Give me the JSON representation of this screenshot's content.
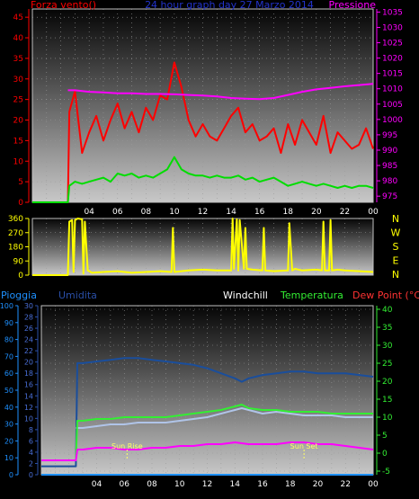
{
  "chart_data": [
    {
      "type": "line",
      "header": {
        "left": "Forza vento()",
        "center": "24 hour graph day   27 Marzo 2014",
        "right": "Pressione"
      },
      "x_ticks": [
        "04",
        "06",
        "08",
        "10",
        "12",
        "14",
        "16",
        "18",
        "20",
        "22",
        "00"
      ],
      "y_left": {
        "ticks": [
          0,
          5,
          10,
          15,
          20,
          25,
          30,
          35,
          40,
          45
        ],
        "ylim": [
          0,
          47
        ]
      },
      "y_right": {
        "ticks": [
          975,
          980,
          985,
          990,
          995,
          1000,
          1005,
          1010,
          1015,
          1020,
          1025,
          1030,
          1035
        ],
        "ylim": [
          973,
          1036
        ]
      },
      "x_hours": [
        0,
        24
      ],
      "series": [
        {
          "name": "Forza vento()",
          "color": "#ff0000",
          "x": [
            0,
            2.5,
            2.6,
            3,
            3.5,
            4,
            4.5,
            5,
            5.5,
            6,
            6.5,
            7,
            7.5,
            8,
            8.5,
            9,
            9.5,
            10,
            10.5,
            11,
            11.5,
            12,
            12.5,
            13,
            13.5,
            14,
            14.5,
            15,
            15.5,
            16,
            16.5,
            17,
            17.5,
            18,
            18.5,
            19,
            19.5,
            20,
            20.5,
            21,
            21.5,
            22,
            22.5,
            23,
            23.5,
            24
          ],
          "y": [
            0,
            0,
            22,
            27,
            12,
            17,
            21,
            15,
            20,
            24,
            18,
            22,
            17,
            23,
            20,
            26,
            25,
            34,
            28,
            20,
            16,
            19,
            16,
            15,
            18,
            21,
            23,
            17,
            19,
            15,
            16,
            18,
            12,
            19,
            14,
            20,
            17,
            14,
            21,
            12,
            17,
            15,
            13,
            14,
            18,
            13
          ]
        },
        {
          "name": "Forza vento()",
          "color": "#00dd00",
          "x": [
            0,
            2.5,
            2.6,
            3,
            3.5,
            4,
            4.5,
            5,
            5.5,
            6,
            6.5,
            7,
            7.5,
            8,
            8.5,
            9,
            9.5,
            10,
            10.5,
            11,
            11.5,
            12,
            12.5,
            13,
            13.5,
            14,
            14.5,
            15,
            15.5,
            16,
            16.5,
            17,
            17.5,
            18,
            18.5,
            19,
            19.5,
            20,
            20.5,
            21,
            21.5,
            22,
            22.5,
            23,
            23.5,
            24
          ],
          "y": [
            0,
            0,
            4,
            5,
            4.5,
            5,
            5.5,
            6,
            5,
            7,
            6.5,
            7,
            6,
            6.5,
            6,
            7,
            8,
            11,
            8,
            7,
            6.5,
            6.5,
            6,
            6.5,
            6,
            6,
            6.5,
            5.5,
            6,
            5,
            5.5,
            6,
            5,
            4,
            4.5,
            5,
            4.5,
            4,
            4.5,
            4,
            3.5,
            4,
            3.5,
            4,
            4,
            3.5
          ]
        },
        {
          "name": "Pressione",
          "axis": "right",
          "color": "#ff00ff",
          "x": [
            2.5,
            3,
            4,
            5,
            6,
            7,
            8,
            9,
            10,
            11,
            12,
            13,
            14,
            15,
            16,
            17,
            18,
            19,
            20,
            21,
            22,
            23,
            24
          ],
          "y": [
            1009.5,
            1009.5,
            1009,
            1008.8,
            1008.5,
            1008.5,
            1008.3,
            1008.3,
            1008.2,
            1008,
            1007.8,
            1007.5,
            1007,
            1006.8,
            1006.6,
            1007,
            1008,
            1009,
            1009.8,
            1010.3,
            1010.8,
            1011.2,
            1011.6
          ]
        }
      ]
    },
    {
      "type": "line",
      "x_ticks": [],
      "y_left": {
        "ticks": [
          0,
          90,
          180,
          270,
          360
        ],
        "ylim": [
          0,
          360
        ]
      },
      "y_right_letters": [
        "N",
        "W",
        "S",
        "E",
        "N"
      ],
      "series": [
        {
          "name": "Direzione vento",
          "color": "#ffff00",
          "x": [
            0,
            2.5,
            2.6,
            2.8,
            2.9,
            3.0,
            3.2,
            3.5,
            3.6,
            3.7,
            3.9,
            4.2,
            5,
            6,
            7,
            8,
            9,
            9.8,
            9.9,
            10.0,
            11,
            12,
            13,
            14.0,
            14.1,
            14.2,
            14.4,
            14.5,
            14.6,
            14.9,
            15.0,
            15.1,
            15.5,
            16.2,
            16.3,
            16.4,
            17,
            18.0,
            18.1,
            18.3,
            18.5,
            19,
            20,
            20.4,
            20.5,
            20.6,
            20.9,
            21.0,
            21.1,
            21.5,
            22,
            23,
            24
          ],
          "y": [
            0,
            0,
            340,
            350,
            20,
            350,
            360,
            355,
            10,
            340,
            30,
            15,
            20,
            25,
            15,
            20,
            25,
            20,
            300,
            20,
            30,
            35,
            30,
            30,
            360,
            40,
            355,
            30,
            350,
            40,
            300,
            40,
            35,
            30,
            300,
            30,
            25,
            30,
            330,
            30,
            40,
            30,
            35,
            30,
            340,
            30,
            30,
            350,
            30,
            35,
            30,
            25,
            20
          ]
        }
      ]
    },
    {
      "type": "line",
      "header": {
        "left": "Pioggia",
        "umidita": "Umidita",
        "windchill": "Windchill",
        "temperatura": "Temperatura",
        "dew": "Dew Point (°C)"
      },
      "x_ticks": [
        "04",
        "06",
        "08",
        "10",
        "12",
        "14",
        "16",
        "18",
        "20",
        "22",
        "00"
      ],
      "y_pioggia": {
        "ticks": [
          0,
          10,
          20,
          30,
          40,
          50,
          60,
          70,
          80,
          90,
          100
        ],
        "ylim": [
          0,
          100
        ]
      },
      "y_umidita": {
        "ticks": [
          0,
          2,
          4,
          6,
          8,
          10,
          12,
          14,
          16,
          18,
          20,
          22,
          24,
          26,
          28,
          30
        ],
        "ylim": [
          0,
          30
        ]
      },
      "y_right": {
        "ticks": [
          -5,
          0,
          5,
          10,
          15,
          20,
          25,
          30,
          35,
          40
        ],
        "ylim": [
          -6,
          41
        ]
      },
      "annotations": [
        {
          "text": "Sun Rise",
          "x": 6.2
        },
        {
          "text": "Sun Set",
          "x": 19.0
        }
      ],
      "series": [
        {
          "name": "Umidita",
          "color": "#1a4e9c",
          "x": [
            0,
            2.5,
            2.6,
            3,
            4,
            5,
            6,
            7,
            8,
            9,
            10,
            11,
            12,
            13,
            14,
            14.5,
            15,
            16,
            17,
            18,
            19,
            20,
            21,
            22,
            23,
            24
          ],
          "y": [
            5,
            5,
            66,
            66,
            67,
            68,
            69,
            69,
            68,
            67,
            66,
            65,
            63,
            60,
            57,
            55,
            57,
            59,
            60,
            61,
            61,
            60,
            60,
            60,
            59,
            58
          ]
        },
        {
          "name": "Windchill",
          "axis": "right",
          "color": "#b0c4e8",
          "x": [
            2.5,
            3,
            4,
            5,
            6,
            7,
            8,
            9,
            10,
            11,
            12,
            13,
            14,
            14.5,
            15,
            16,
            17,
            18,
            19,
            20,
            21,
            22,
            23,
            24
          ],
          "y": [
            7,
            7,
            7.5,
            8,
            8,
            8.5,
            8.5,
            8.5,
            9,
            9.5,
            10,
            11,
            12,
            12.5,
            12,
            11,
            11.5,
            11,
            10.5,
            10.5,
            10.5,
            10,
            10,
            10
          ]
        },
        {
          "name": "Temperatura",
          "axis": "right",
          "color": "#33ee33",
          "x": [
            0,
            2.5,
            2.6,
            3,
            4,
            5,
            6,
            7,
            8,
            9,
            10,
            11,
            12,
            13,
            14,
            14.5,
            15,
            16,
            17,
            18,
            19,
            20,
            21,
            22,
            23,
            24
          ],
          "y": [
            -2,
            -2,
            9,
            9,
            9.5,
            9.5,
            10,
            10,
            10,
            10,
            10.5,
            11,
            11.5,
            12,
            13,
            13.5,
            12.5,
            12,
            12,
            11.5,
            11.5,
            11.5,
            11,
            11,
            11,
            11
          ]
        },
        {
          "name": "Dew Point (°C)",
          "axis": "right",
          "color": "#ff00ff",
          "x": [
            0,
            2.5,
            2.6,
            3,
            4,
            5,
            6,
            7,
            8,
            9,
            10,
            11,
            12,
            13,
            14,
            15,
            16,
            17,
            18,
            19,
            20,
            21,
            22,
            23,
            24
          ],
          "y": [
            -2,
            -2,
            1,
            1,
            1.5,
            1.5,
            1,
            1,
            1.5,
            1.5,
            2,
            2,
            2.5,
            2.5,
            3,
            2.5,
            2.5,
            2.5,
            3,
            3,
            2.5,
            2.5,
            2,
            1.5,
            1
          ]
        },
        {
          "name": "Pioggia",
          "color": "#1e90ff",
          "x": [
            0,
            24
          ],
          "y": [
            0,
            0
          ]
        }
      ]
    }
  ]
}
